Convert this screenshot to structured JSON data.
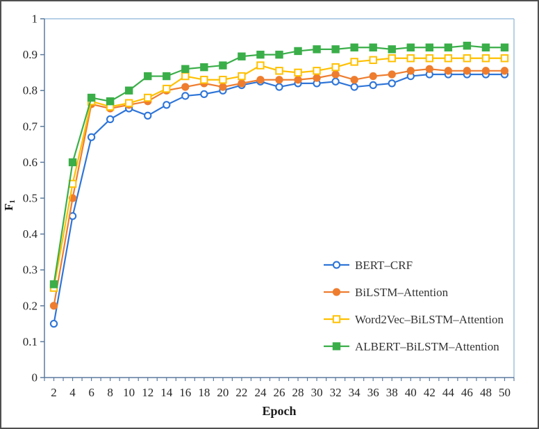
{
  "figure": {
    "border_color": "#4f4f4f",
    "background_color": "#ffffff"
  },
  "style": {
    "axis_color": "#5b7a9e",
    "frame_color": "#9fc0dd",
    "tick_label_color": "#262626",
    "axis_title_color": "#1a1a1a",
    "legend_text_color": "#333333"
  },
  "chart_data": {
    "type": "line",
    "title": "",
    "xlabel": "Epoch",
    "ylabel_base": "F",
    "ylabel_sub": "1",
    "xlim": [
      1,
      51
    ],
    "ylim": [
      0,
      1
    ],
    "grid": false,
    "legend_position": "inside-lower-right",
    "x": [
      2,
      4,
      6,
      8,
      10,
      12,
      14,
      16,
      18,
      20,
      22,
      24,
      26,
      28,
      30,
      32,
      34,
      36,
      38,
      40,
      42,
      44,
      46,
      48,
      50
    ],
    "xtick_labels": [
      "2",
      "4",
      "6",
      "8",
      "10",
      "12",
      "14",
      "16",
      "18",
      "20",
      "22",
      "24",
      "26",
      "28",
      "30",
      "32",
      "34",
      "36",
      "38",
      "40",
      "42",
      "44",
      "46",
      "48",
      "50"
    ],
    "yticks": [
      0,
      0.1,
      0.2,
      0.3,
      0.4,
      0.5,
      0.6,
      0.7,
      0.8,
      0.9,
      1
    ],
    "ytick_labels": [
      "0",
      "0.1",
      "0.2",
      "0.3",
      "0.4",
      "0.5",
      "0.6",
      "0.7",
      "0.8",
      "0.9",
      "1"
    ],
    "series": [
      {
        "name": "BERT–CRF",
        "color": "#2e75d8",
        "marker": "circle",
        "fill": "open",
        "values": [
          0.15,
          0.45,
          0.67,
          0.72,
          0.75,
          0.73,
          0.76,
          0.785,
          0.79,
          0.8,
          0.815,
          0.825,
          0.81,
          0.82,
          0.82,
          0.825,
          0.81,
          0.815,
          0.82,
          0.84,
          0.845,
          0.845,
          0.845,
          0.845,
          0.845
        ]
      },
      {
        "name": "BiLSTM–Attention",
        "color": "#ee7d2f",
        "marker": "circle",
        "fill": "solid",
        "values": [
          0.2,
          0.5,
          0.762,
          0.75,
          0.76,
          0.77,
          0.8,
          0.81,
          0.82,
          0.81,
          0.82,
          0.83,
          0.83,
          0.83,
          0.835,
          0.845,
          0.83,
          0.84,
          0.845,
          0.855,
          0.86,
          0.855,
          0.855,
          0.855,
          0.855
        ]
      },
      {
        "name": "Word2Vec–BiLSTM–Attention",
        "color": "#ffc000",
        "marker": "square",
        "fill": "open",
        "values": [
          0.25,
          0.54,
          0.77,
          0.755,
          0.765,
          0.78,
          0.805,
          0.84,
          0.83,
          0.83,
          0.84,
          0.87,
          0.855,
          0.85,
          0.855,
          0.865,
          0.88,
          0.885,
          0.89,
          0.89,
          0.89,
          0.89,
          0.89,
          0.89,
          0.89
        ]
      },
      {
        "name": "ALBERT–BiLSTM–Attention",
        "color": "#3aae49",
        "marker": "square",
        "fill": "solid",
        "values": [
          0.26,
          0.6,
          0.78,
          0.77,
          0.8,
          0.84,
          0.84,
          0.86,
          0.865,
          0.87,
          0.895,
          0.9,
          0.9,
          0.91,
          0.915,
          0.915,
          0.92,
          0.92,
          0.915,
          0.92,
          0.92,
          0.92,
          0.925,
          0.92,
          0.92
        ]
      }
    ]
  }
}
